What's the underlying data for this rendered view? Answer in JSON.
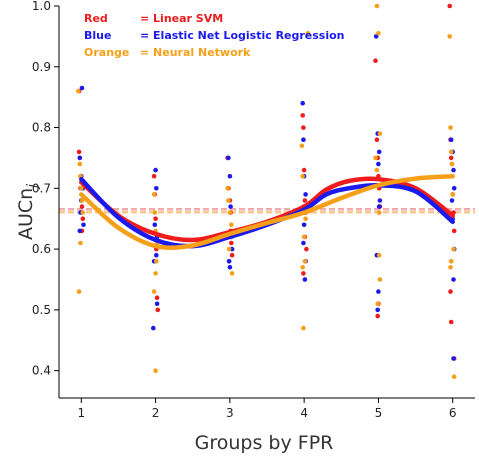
{
  "chart_data": {
    "type": "scatter",
    "title": "",
    "xlabel": "Groups by FPR",
    "ylabel": "AUCn",
    "ylabel_subscript": "j",
    "xlim": [
      0.7,
      6.3
    ],
    "ylim": [
      0.355,
      1.0
    ],
    "xticks": [
      1,
      2,
      3,
      4,
      5,
      6
    ],
    "yticks": [
      0.4,
      0.5,
      0.6,
      0.7,
      0.8,
      0.9,
      1.0
    ],
    "grid": false,
    "legend_position": "top-left",
    "legend": [
      {
        "key": "Red",
        "label": "= Linear SVM",
        "color": "#ee1c1c"
      },
      {
        "key": "Blue",
        "label": "= Elastic Net Logistic Regression",
        "color": "#1a1aee"
      },
      {
        "key": "Orange",
        "label": "= Neural Network",
        "color": "#f5a018"
      }
    ],
    "reference_line": {
      "y": 0.663,
      "colors": [
        "#f4a9a9",
        "#f7c98c"
      ]
    },
    "series": [
      {
        "name": "Linear SVM",
        "color": "#ee1c1c",
        "points": [
          [
            0.97,
            0.86
          ],
          [
            0.97,
            0.76
          ],
          [
            0.98,
            0.75
          ],
          [
            0.99,
            0.72
          ],
          [
            0.99,
            0.7
          ],
          [
            1.01,
            0.67
          ],
          [
            1.02,
            0.65
          ],
          [
            1.01,
            0.63
          ],
          [
            1.98,
            0.72
          ],
          [
            1.99,
            0.69
          ],
          [
            2.0,
            0.65
          ],
          [
            2.01,
            0.6
          ],
          [
            2.02,
            0.52
          ],
          [
            2.03,
            0.5
          ],
          [
            2.97,
            0.75
          ],
          [
            2.98,
            0.7
          ],
          [
            3.0,
            0.68
          ],
          [
            3.01,
            0.66
          ],
          [
            3.01,
            0.63
          ],
          [
            3.02,
            0.61
          ],
          [
            3.03,
            0.59
          ],
          [
            2.99,
            0.58
          ],
          [
            3.98,
            0.82
          ],
          [
            3.99,
            0.8
          ],
          [
            4.0,
            0.73
          ],
          [
            4.01,
            0.68
          ],
          [
            4.02,
            0.66
          ],
          [
            4.01,
            0.62
          ],
          [
            4.03,
            0.6
          ],
          [
            3.99,
            0.56
          ],
          [
            4.96,
            0.91
          ],
          [
            4.98,
            0.78
          ],
          [
            4.99,
            0.75
          ],
          [
            5.0,
            0.72
          ],
          [
            5.01,
            0.7
          ],
          [
            5.02,
            0.67
          ],
          [
            4.98,
            0.59
          ],
          [
            5.0,
            0.51
          ],
          [
            4.99,
            0.49
          ],
          [
            5.96,
            1.0
          ],
          [
            5.97,
            0.78
          ],
          [
            5.98,
            0.75
          ],
          [
            5.99,
            0.74
          ],
          [
            6.0,
            0.69
          ],
          [
            6.01,
            0.66
          ],
          [
            6.02,
            0.63
          ],
          [
            5.97,
            0.53
          ],
          [
            5.98,
            0.48
          ],
          [
            6.02,
            0.42
          ]
        ],
        "trend": [
          [
            1,
            0.71
          ],
          [
            1.5,
            0.655
          ],
          [
            2,
            0.625
          ],
          [
            2.5,
            0.615
          ],
          [
            3,
            0.628
          ],
          [
            3.5,
            0.645
          ],
          [
            4,
            0.67
          ],
          [
            4.3,
            0.698
          ],
          [
            4.6,
            0.712
          ],
          [
            5,
            0.715
          ],
          [
            5.5,
            0.7
          ],
          [
            6,
            0.655
          ]
        ]
      },
      {
        "name": "Elastic Net Logistic Regression",
        "color": "#1a1aee",
        "points": [
          [
            1.01,
            0.865
          ],
          [
            0.98,
            0.75
          ],
          [
            1.0,
            0.72
          ],
          [
            1.02,
            0.7
          ],
          [
            1.0,
            0.68
          ],
          [
            0.99,
            0.66
          ],
          [
            1.03,
            0.64
          ],
          [
            0.98,
            0.63
          ],
          [
            2.0,
            0.73
          ],
          [
            2.01,
            0.7
          ],
          [
            1.99,
            0.64
          ],
          [
            2.02,
            0.62
          ],
          [
            2.01,
            0.59
          ],
          [
            1.98,
            0.58
          ],
          [
            2.02,
            0.51
          ],
          [
            1.97,
            0.47
          ],
          [
            2.98,
            0.75
          ],
          [
            3.0,
            0.72
          ],
          [
            3.01,
            0.67
          ],
          [
            3.02,
            0.62
          ],
          [
            3.03,
            0.6
          ],
          [
            2.99,
            0.58
          ],
          [
            3.0,
            0.57
          ],
          [
            3.98,
            0.84
          ],
          [
            3.99,
            0.78
          ],
          [
            4.0,
            0.72
          ],
          [
            4.02,
            0.69
          ],
          [
            4.01,
            0.67
          ],
          [
            4.0,
            0.64
          ],
          [
            3.99,
            0.61
          ],
          [
            4.02,
            0.58
          ],
          [
            4.01,
            0.55
          ],
          [
            4.97,
            0.95
          ],
          [
            4.99,
            0.79
          ],
          [
            5.01,
            0.76
          ],
          [
            5.0,
            0.74
          ],
          [
            5.02,
            0.68
          ],
          [
            5.01,
            0.67
          ],
          [
            4.98,
            0.59
          ],
          [
            5.0,
            0.53
          ],
          [
            4.99,
            0.5
          ],
          [
            5.98,
            0.78
          ],
          [
            6.0,
            0.76
          ],
          [
            6.01,
            0.73
          ],
          [
            6.02,
            0.7
          ],
          [
            5.99,
            0.68
          ],
          [
            6.0,
            0.65
          ],
          [
            6.02,
            0.6
          ],
          [
            6.01,
            0.55
          ],
          [
            6.01,
            0.42
          ]
        ],
        "trend": [
          [
            1,
            0.715
          ],
          [
            1.5,
            0.652
          ],
          [
            2,
            0.615
          ],
          [
            2.5,
            0.605
          ],
          [
            3,
            0.62
          ],
          [
            3.5,
            0.64
          ],
          [
            4,
            0.665
          ],
          [
            4.3,
            0.69
          ],
          [
            4.6,
            0.7
          ],
          [
            5,
            0.705
          ],
          [
            5.5,
            0.695
          ],
          [
            6,
            0.645
          ]
        ]
      },
      {
        "name": "Neural Network",
        "color": "#f5a018",
        "points": [
          [
            0.96,
            0.86
          ],
          [
            0.98,
            0.74
          ],
          [
            0.99,
            0.72
          ],
          [
            1.0,
            0.7
          ],
          [
            1.01,
            0.68
          ],
          [
            1.02,
            0.66
          ],
          [
            0.99,
            0.61
          ],
          [
            0.97,
            0.53
          ],
          [
            1.98,
            0.69
          ],
          [
            1.99,
            0.66
          ],
          [
            2.0,
            0.63
          ],
          [
            2.02,
            0.61
          ],
          [
            2.01,
            0.58
          ],
          [
            2.0,
            0.56
          ],
          [
            1.98,
            0.53
          ],
          [
            2.0,
            0.4
          ],
          [
            2.97,
            0.7
          ],
          [
            2.98,
            0.68
          ],
          [
            3.0,
            0.66
          ],
          [
            3.02,
            0.64
          ],
          [
            3.01,
            0.62
          ],
          [
            2.99,
            0.6
          ],
          [
            3.03,
            0.56
          ],
          [
            3.97,
            0.77
          ],
          [
            3.98,
            0.72
          ],
          [
            3.99,
            0.67
          ],
          [
            4.02,
            0.65
          ],
          [
            4.0,
            0.62
          ],
          [
            4.01,
            0.58
          ],
          [
            3.98,
            0.57
          ],
          [
            3.99,
            0.47
          ],
          [
            4.05,
            0.955
          ],
          [
            4.98,
            1.0
          ],
          [
            5.0,
            0.955
          ],
          [
            5.02,
            0.79
          ],
          [
            4.96,
            0.75
          ],
          [
            4.98,
            0.73
          ],
          [
            5.01,
            0.66
          ],
          [
            5.02,
            0.55
          ],
          [
            4.99,
            0.51
          ],
          [
            5.01,
            0.59
          ],
          [
            5.96,
            0.95
          ],
          [
            5.97,
            0.8
          ],
          [
            5.98,
            0.76
          ],
          [
            5.99,
            0.74
          ],
          [
            6.0,
            0.69
          ],
          [
            6.01,
            0.6
          ],
          [
            5.98,
            0.58
          ],
          [
            5.97,
            0.57
          ],
          [
            6.02,
            0.39
          ]
        ],
        "trend": [
          [
            1,
            0.69
          ],
          [
            1.5,
            0.635
          ],
          [
            2,
            0.605
          ],
          [
            2.5,
            0.606
          ],
          [
            3,
            0.625
          ],
          [
            3.5,
            0.643
          ],
          [
            4,
            0.66
          ],
          [
            4.5,
            0.684
          ],
          [
            5,
            0.705
          ],
          [
            5.5,
            0.716
          ],
          [
            6,
            0.72
          ]
        ]
      }
    ]
  }
}
